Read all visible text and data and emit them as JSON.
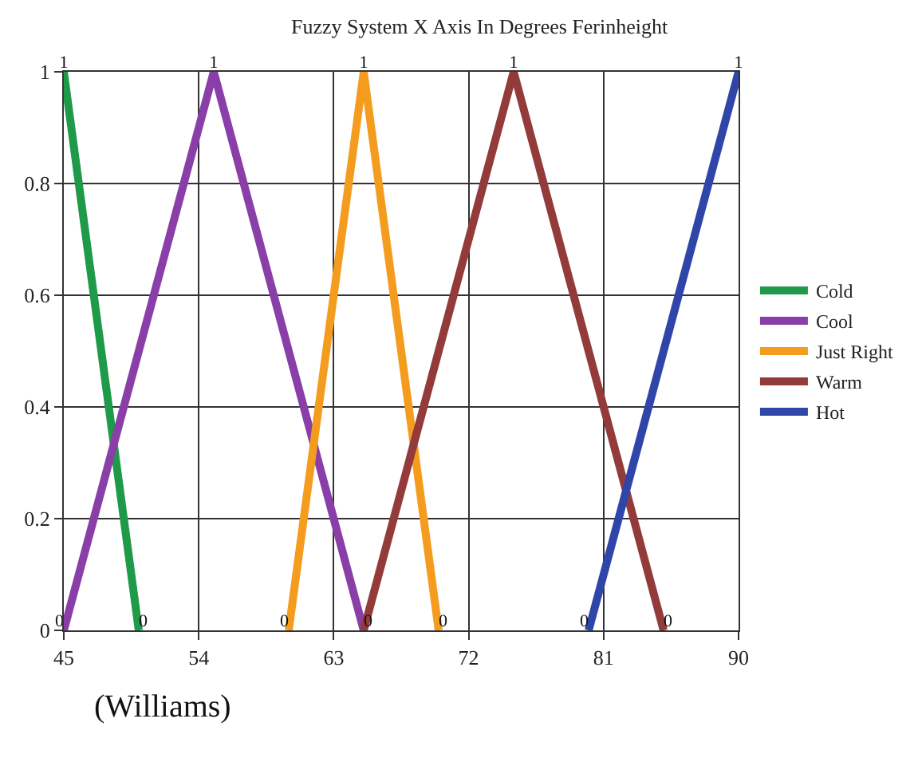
{
  "chart_data": {
    "type": "line",
    "title": "Fuzzy System X Axis In Degrees Ferinheight",
    "series": [
      {
        "name": "Cold",
        "color": "#1f9a48",
        "x": [
          45,
          50
        ],
        "values": [
          1,
          0
        ],
        "value_labels": [
          "1",
          "0"
        ]
      },
      {
        "name": "Cool",
        "color": "#8a3fa8",
        "x": [
          45,
          55,
          65
        ],
        "values": [
          0,
          1,
          0
        ],
        "value_labels": [
          "0",
          "1",
          "0"
        ]
      },
      {
        "name": "Just Right",
        "color": "#f39c1e",
        "x": [
          60,
          65,
          70
        ],
        "values": [
          0,
          1,
          0
        ],
        "value_labels": [
          "0",
          "1",
          "0"
        ]
      },
      {
        "name": "Warm",
        "color": "#933a3a",
        "x": [
          65,
          75,
          85
        ],
        "values": [
          0,
          1,
          0
        ],
        "value_labels": [
          null,
          "1",
          "0"
        ]
      },
      {
        "name": "Hot",
        "color": "#2f46a8",
        "x": [
          80,
          90
        ],
        "values": [
          0,
          1
        ],
        "value_labels": [
          "0",
          "1"
        ]
      }
    ],
    "xlim": [
      45,
      90
    ],
    "xticks": [
      45,
      54,
      63,
      72,
      81,
      90
    ],
    "ylim": [
      0,
      1
    ],
    "yticks": [
      0,
      0.2,
      0.4,
      0.6,
      0.8,
      1
    ],
    "grid": true,
    "legend": "right",
    "marker": "none",
    "line_style": "solid",
    "annotations": [
      "(Williams)"
    ]
  }
}
